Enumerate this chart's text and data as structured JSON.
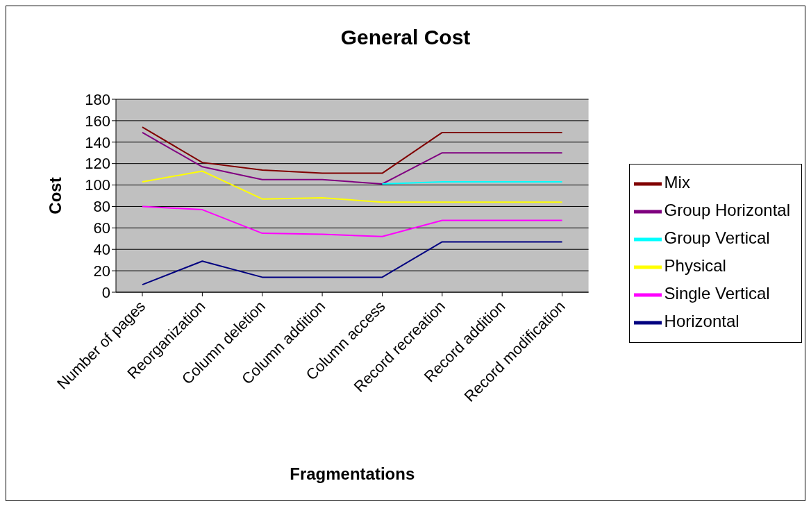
{
  "chart_data": {
    "type": "line",
    "title": "General Cost",
    "xlabel": "Fragmentations",
    "ylabel": "Cost",
    "categories": [
      "Number of pages",
      "Reorganization",
      "Column deletion",
      "Column addition",
      "Column access",
      "Record recreation",
      "Record addition",
      "Record modification"
    ],
    "series": [
      {
        "name": "Mix",
        "color": "#800000",
        "values": [
          154,
          121,
          114,
          111,
          111,
          149,
          149,
          149
        ]
      },
      {
        "name": "Group Horizontal",
        "color": "#800080",
        "values": [
          149,
          117,
          105,
          105,
          101,
          130,
          130,
          130
        ]
      },
      {
        "name": "Group Vertical",
        "color": "#00ffff",
        "values": [
          null,
          null,
          null,
          null,
          101,
          103,
          103,
          103
        ]
      },
      {
        "name": "Physical",
        "color": "#ffff00",
        "values": [
          103,
          113,
          87,
          88,
          84,
          84,
          84,
          84
        ]
      },
      {
        "name": "Single Vertical",
        "color": "#ff00ff",
        "values": [
          80,
          77,
          55,
          54,
          52,
          67,
          67,
          67
        ]
      },
      {
        "name": "Horizontal",
        "color": "#000080",
        "values": [
          7,
          29,
          14,
          14,
          14,
          47,
          47,
          47
        ]
      }
    ],
    "ylim": [
      0,
      180
    ],
    "yticks": [
      0,
      20,
      40,
      60,
      80,
      100,
      120,
      140,
      160,
      180
    ],
    "grid": "y",
    "legend": "right",
    "marker": "none",
    "line_style": "solid"
  }
}
